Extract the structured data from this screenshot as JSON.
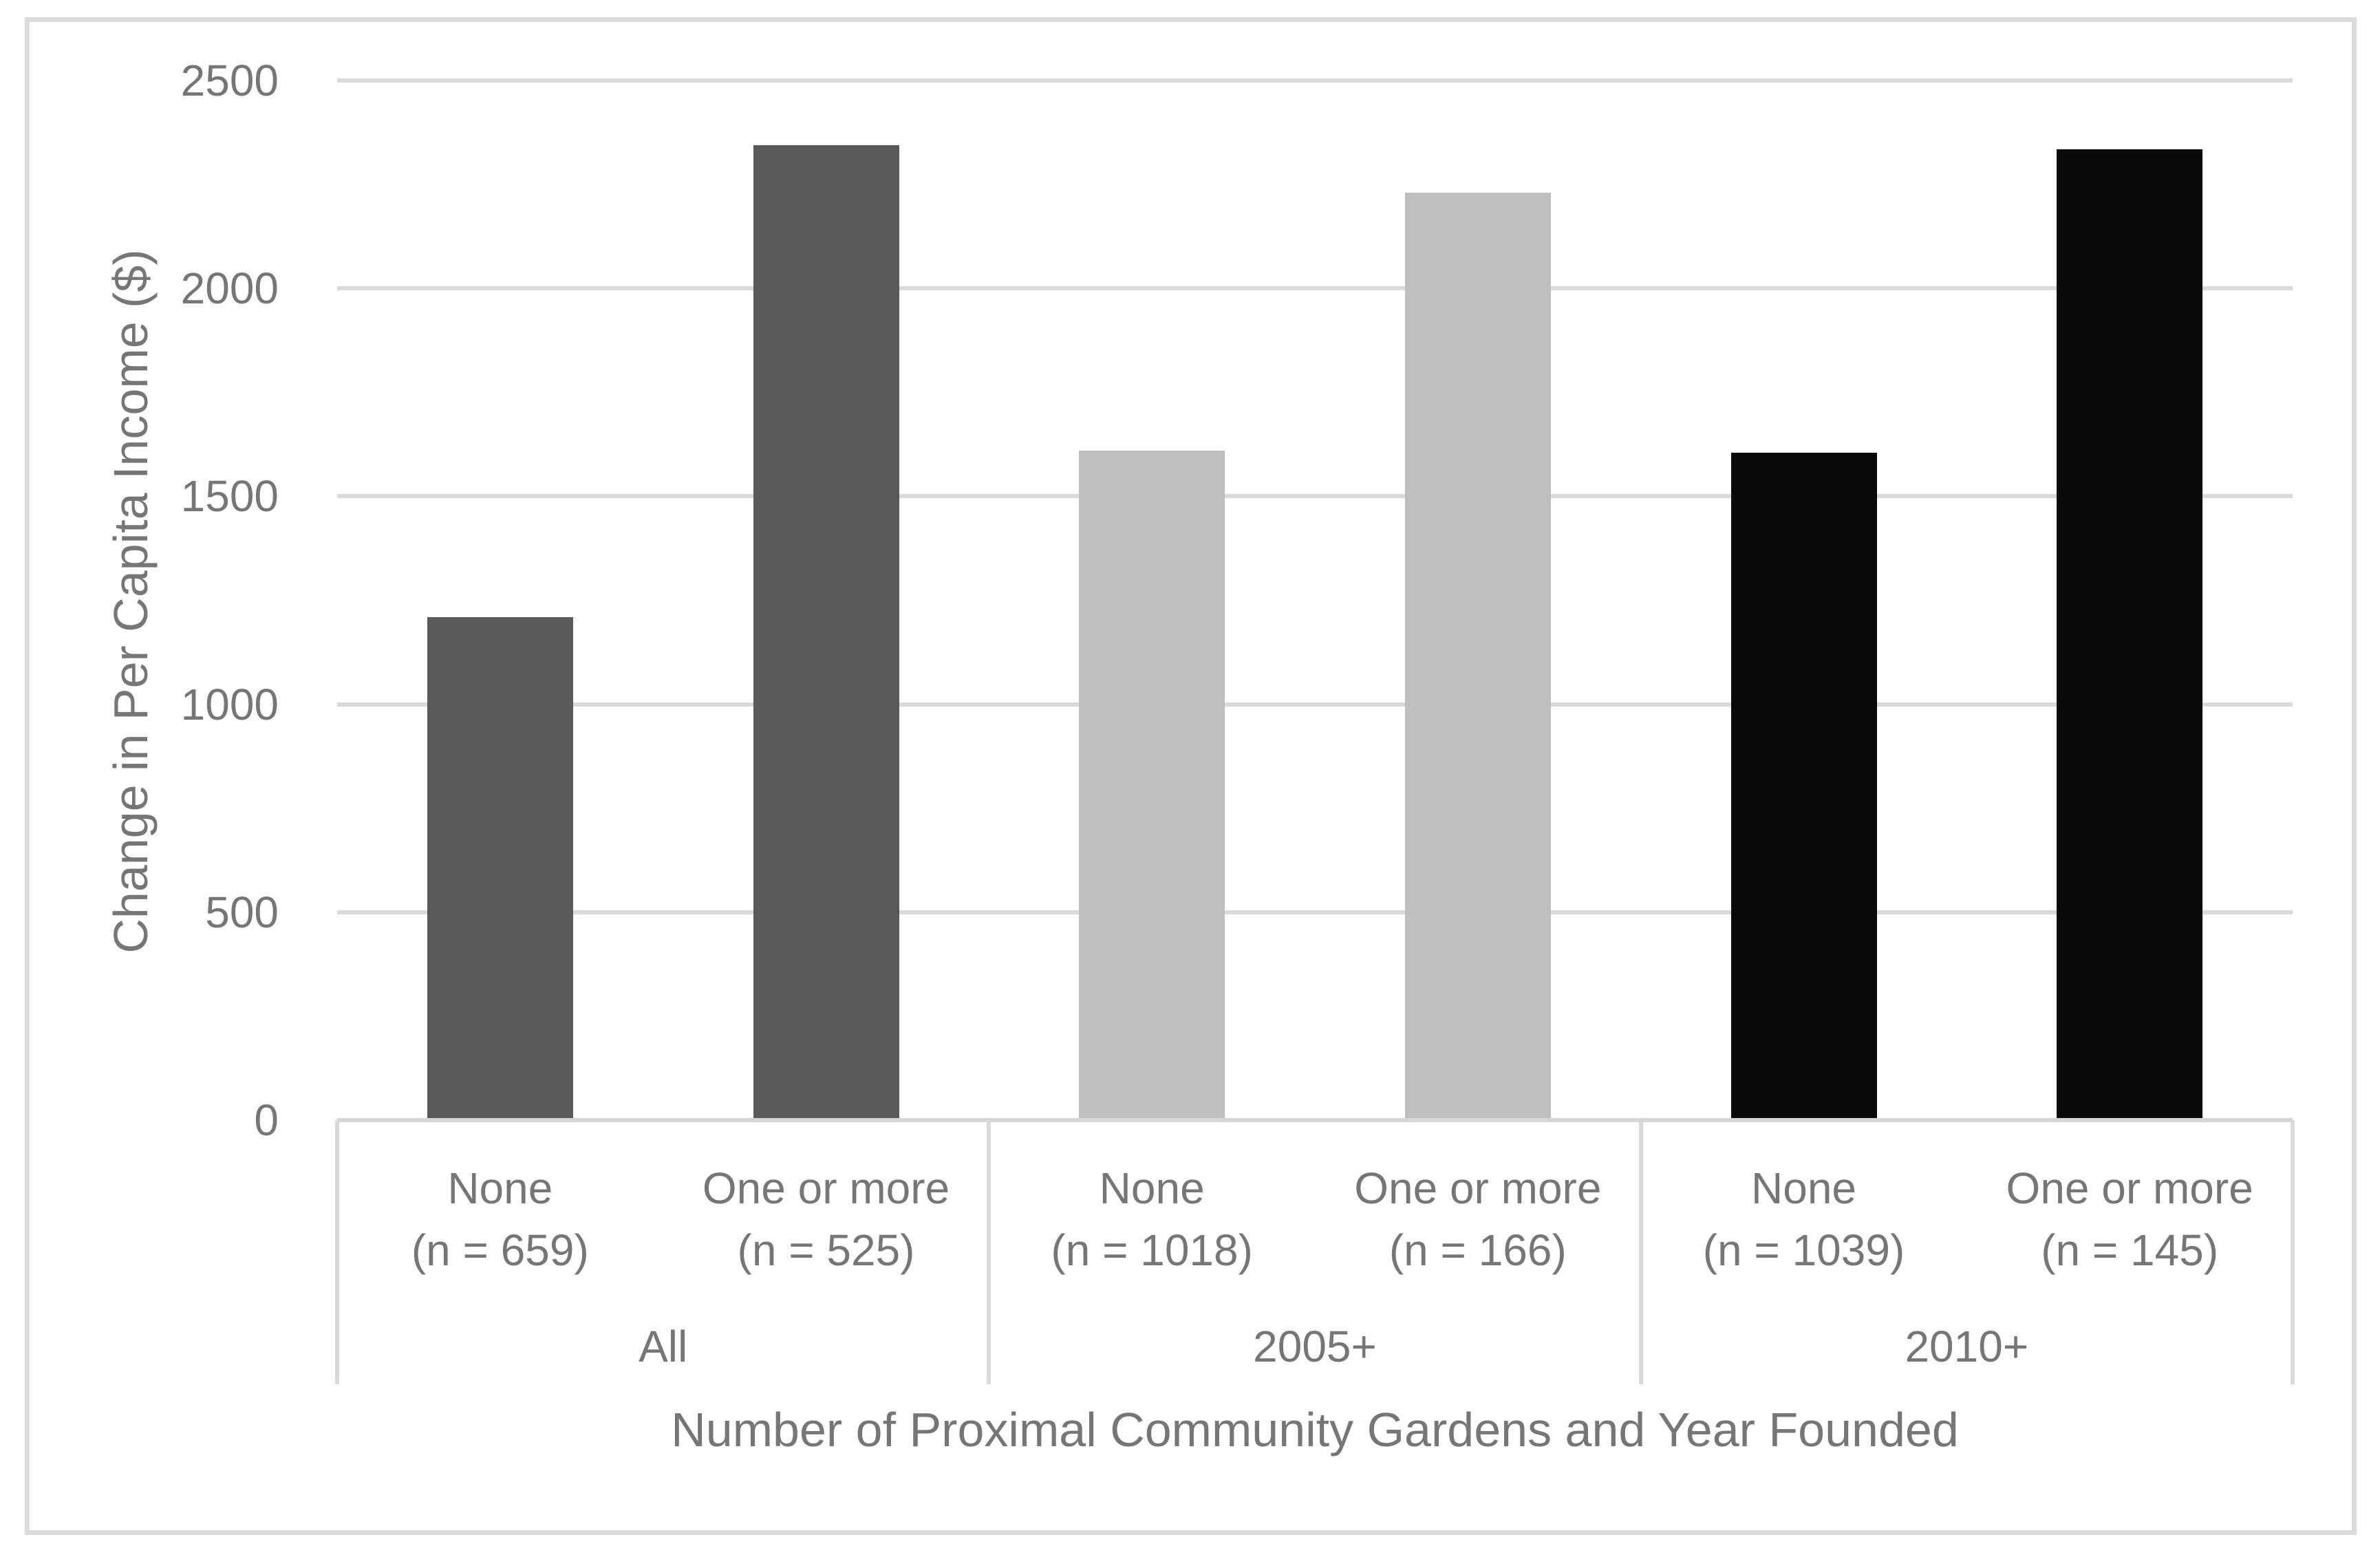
{
  "chart_data": {
    "type": "bar",
    "title": "",
    "xlabel": "Number of Proximal Community Gardens and Year Founded",
    "ylabel": "Change in Per Capita Income ($)",
    "ylim": [
      0,
      2500
    ],
    "yticks": [
      0,
      500,
      1000,
      1500,
      2000,
      2500
    ],
    "grid": true,
    "legend": "none",
    "groups": [
      {
        "label": "All",
        "color": "#595959",
        "bars": [
          {
            "label": "None",
            "n_label": "(n = 659)",
            "value": 1210
          },
          {
            "label": "One or more",
            "n_label": "(n = 525)",
            "value": 2345
          }
        ]
      },
      {
        "label": "2005+",
        "color": "#bfbfbf",
        "bars": [
          {
            "label": "None",
            "n_label": "(n = 1018)",
            "value": 1610
          },
          {
            "label": "One or more",
            "n_label": "(n = 166)",
            "value": 2230
          }
        ]
      },
      {
        "label": "2010+",
        "color": "#0a0a0a",
        "bars": [
          {
            "label": "None",
            "n_label": "(n = 1039)",
            "value": 1605
          },
          {
            "label": "One or more",
            "n_label": "(n = 145)",
            "value": 2335
          }
        ]
      }
    ]
  },
  "colors": {
    "bar_all": "#595959",
    "bar_2005": "#bfbfbf",
    "bar_2010": "#0a0a0a",
    "gridline": "#d9d9d9",
    "frame": "#dcdcdc",
    "text": "#767676",
    "background": "#ffffff"
  }
}
